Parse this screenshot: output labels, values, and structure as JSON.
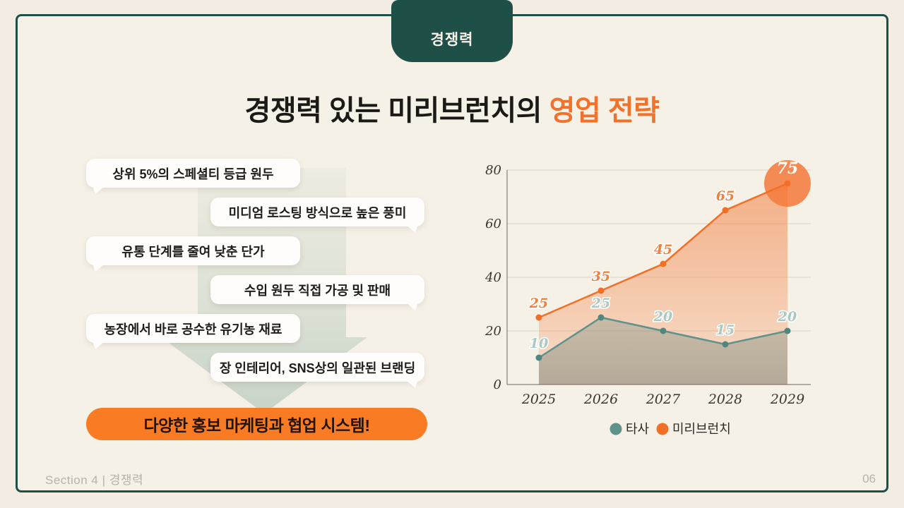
{
  "tab": {
    "label": "경쟁력"
  },
  "title": {
    "main": "경쟁력 있는 미리브런치의 ",
    "accent": "영업 전략"
  },
  "bubbles": [
    {
      "text": "상위 5%의 스페셜티 등급 원두",
      "side": "left"
    },
    {
      "text": "미디엄 로스팅 방식으로 높은 풍미",
      "side": "right"
    },
    {
      "text": "유통 단계를 줄여 낮춘 단가",
      "side": "left"
    },
    {
      "text": "수입 원두 직접 가공 및 판매",
      "side": "right"
    },
    {
      "text": "농장에서 바로 공수한 유기농 재료",
      "side": "left"
    },
    {
      "text": "장 인테리어, SNS상의 일관된 브랜딩",
      "side": "right"
    }
  ],
  "banner": {
    "label": "다양한 홍보 마케팅과 협업 시스템!"
  },
  "chart_data": {
    "type": "line",
    "categories": [
      "2025",
      "2026",
      "2027",
      "2028",
      "2029"
    ],
    "series": [
      {
        "name": "타사",
        "values": [
          10,
          25,
          20,
          15,
          20
        ],
        "line_color": "#5f928b",
        "marker_color": "#4f867f",
        "label_color": "#a9c9c3",
        "area_top": "rgba(133,156,144,0.40)",
        "area_bottom": "rgba(104,106,94,0.46)"
      },
      {
        "name": "미리브런치",
        "values": [
          25,
          35,
          45,
          65,
          75
        ],
        "line_color": "#f26f28",
        "marker_color": "#f26f28",
        "label_color": "#f0803f",
        "area_top": "rgba(242,111,40,0.50)",
        "area_bottom": "rgba(242,111,40,0.15)",
        "highlight_last": true,
        "highlight_color": "#f4793a",
        "highlight_label_color": "#ffffff"
      }
    ],
    "ylim": [
      0,
      80
    ],
    "yticks": [
      0,
      20,
      40,
      60,
      80
    ],
    "grid": true,
    "legend_position": "bottom",
    "area_fill": true,
    "grid_color": "#d8d3c8",
    "axis_color": "#9a948a",
    "tick_color": "#3a362f",
    "legend_text_color": "#2b2a26"
  },
  "footer": {
    "section": "Section 4 | 경쟁력",
    "page": "06"
  },
  "colors": {
    "accent_orange": "#f2712b",
    "brand_green": "#1f5048",
    "banner_orange": "#f97c24",
    "teal": "#5f928b"
  }
}
